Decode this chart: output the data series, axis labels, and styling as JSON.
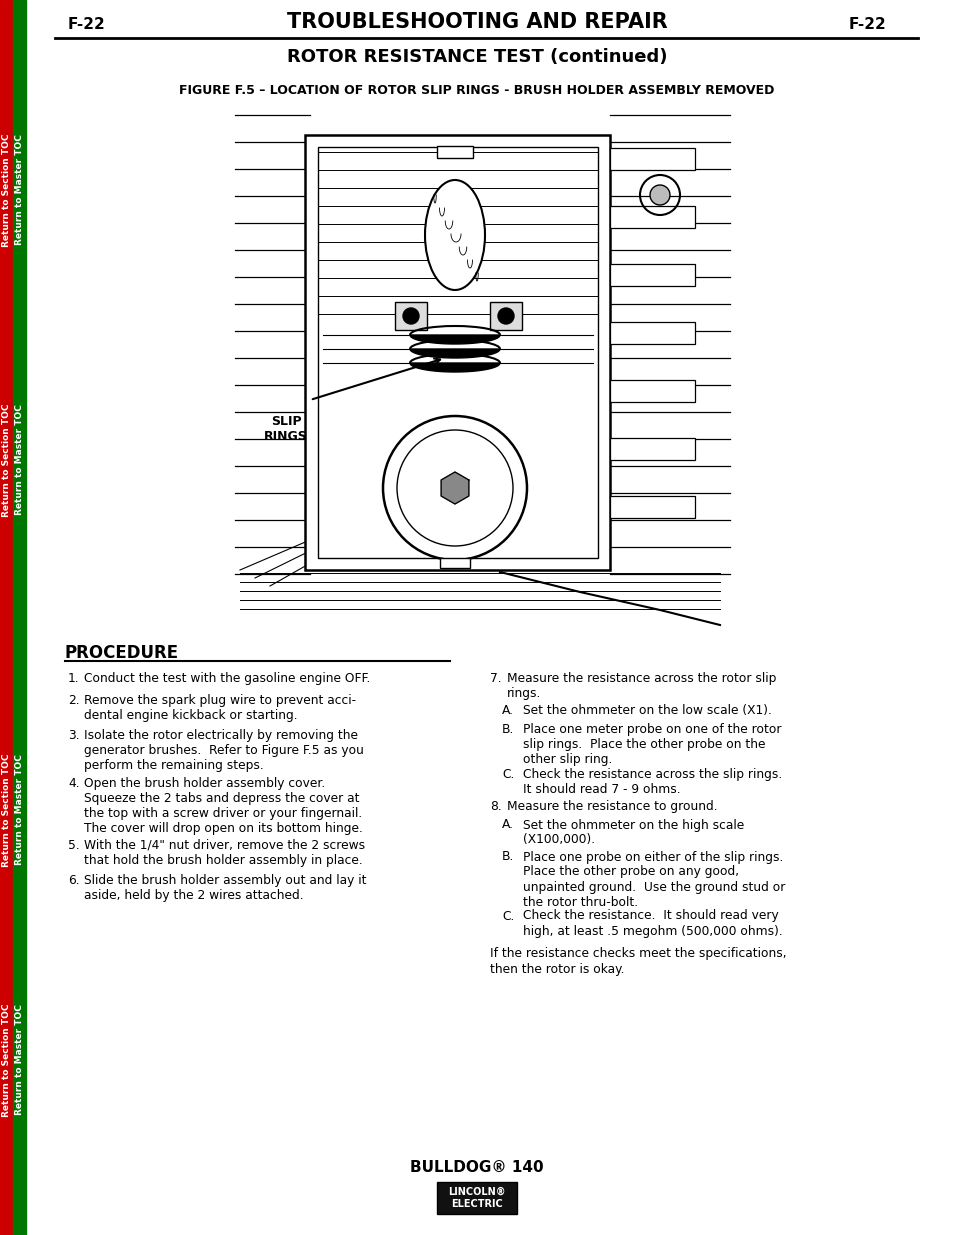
{
  "page_bg": "#ffffff",
  "left_bar_color": "#cc0000",
  "green_bar_color": "#007700",
  "header_left": "F-22",
  "header_center": "TROUBLESHOOTING AND REPAIR",
  "header_right": "F-22",
  "subheader": "ROTOR RESISTANCE TEST (continued)",
  "figure_caption": "FIGURE F.5 – LOCATION OF ROTOR SLIP RINGS - BRUSH HOLDER ASSEMBLY REMOVED",
  "procedure_title": "PROCEDURE",
  "footer_model": "BULLDOG® 140",
  "slip_rings_label": "SLIP\nRINGS",
  "closing_text": "If the resistance checks meet the specifications,\nthen the rotor is okay."
}
